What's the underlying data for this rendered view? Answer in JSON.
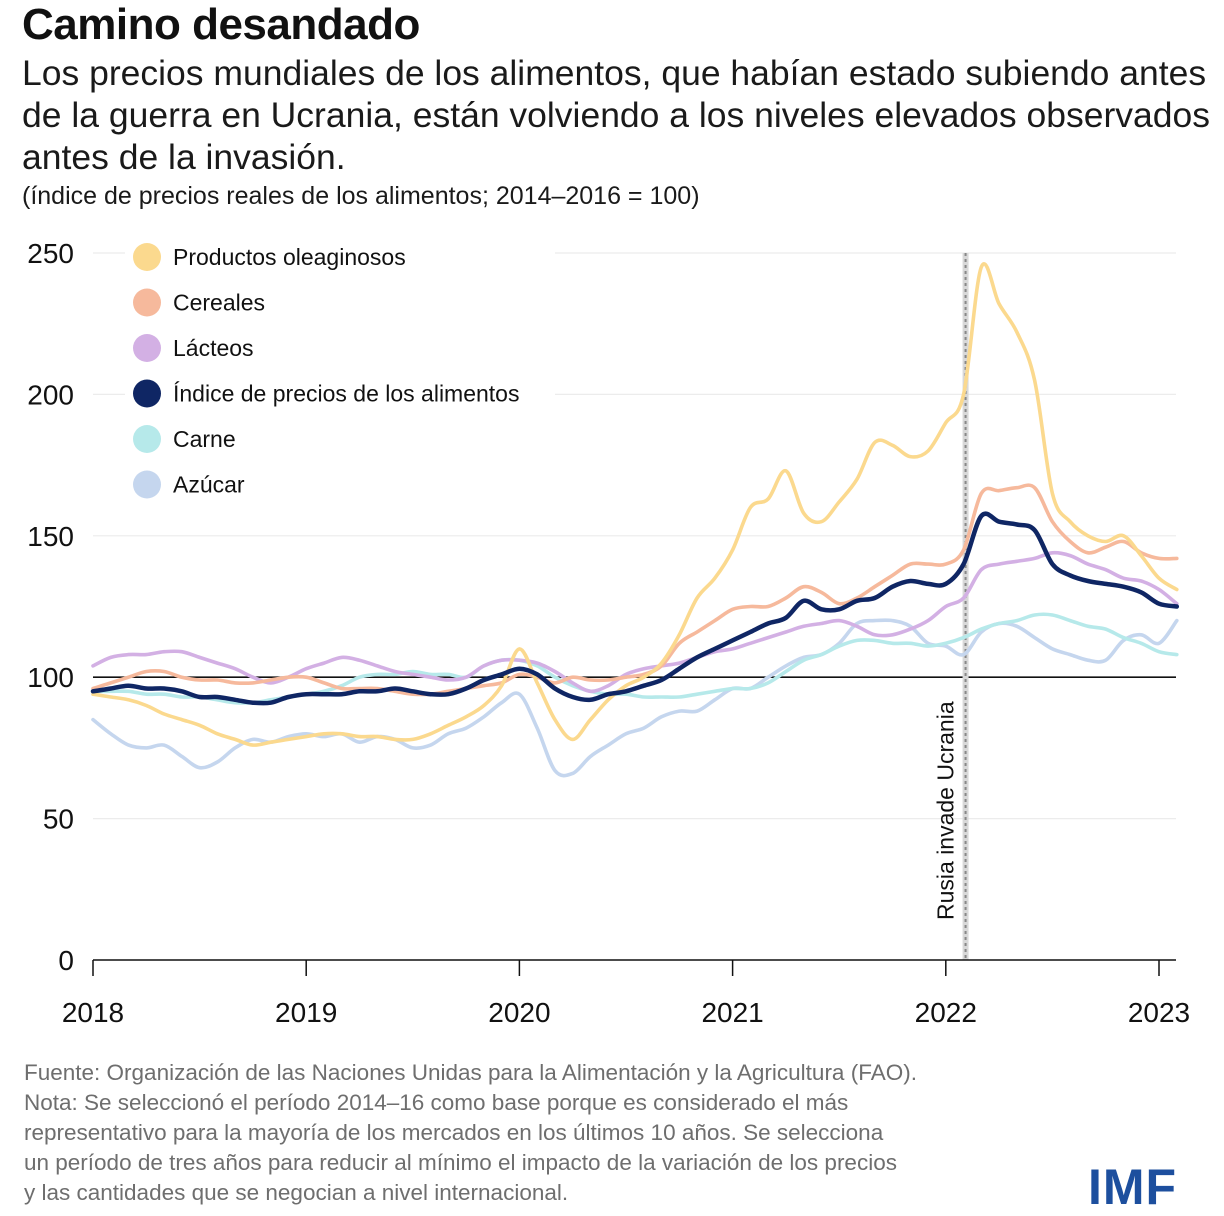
{
  "title": "Camino desandado",
  "subtitle": "Los precios mundiales de los alimentos, que habían estado subiendo antes de la guerra en Ucrania, están volviendo a los niveles elevados observados antes de la invasión.",
  "units": "(índice de precios reales de los alimentos; 2014–2016 = 100)",
  "footer": {
    "lines": [
      "Fuente: Organización de las Naciones Unidas para la Alimentación y la Agricultura (FAO).",
      "Nota: Se seleccionó el período 2014–16 como base porque es considerado el más",
      "representativo para la mayoría de los mercados en los últimos 10 años. Se selecciona",
      "un período de tres años para reducir al mínimo el impacto de la variación de los precios",
      "y las cantidades que se negocian a nivel internacional."
    ]
  },
  "logo": "IMF",
  "chart_data": {
    "type": "line",
    "title": "",
    "xlabel": "",
    "ylabel": "",
    "ylim": [
      0,
      250
    ],
    "xlim": [
      "2018-01",
      "2023-02"
    ],
    "yticks": [
      0,
      50,
      100,
      150,
      200,
      250
    ],
    "xticks": [
      "2018",
      "2019",
      "2020",
      "2021",
      "2022",
      "2023"
    ],
    "grid": true,
    "legend_position": "top-left",
    "reference_line": {
      "y": 100
    },
    "annotation": {
      "x": "2022-02",
      "text": "Rusia invade Ucrania"
    },
    "x": [
      "2018-01",
      "2018-02",
      "2018-03",
      "2018-04",
      "2018-05",
      "2018-06",
      "2018-07",
      "2018-08",
      "2018-09",
      "2018-10",
      "2018-11",
      "2018-12",
      "2019-01",
      "2019-02",
      "2019-03",
      "2019-04",
      "2019-05",
      "2019-06",
      "2019-07",
      "2019-08",
      "2019-09",
      "2019-10",
      "2019-11",
      "2019-12",
      "2020-01",
      "2020-02",
      "2020-03",
      "2020-04",
      "2020-05",
      "2020-06",
      "2020-07",
      "2020-08",
      "2020-09",
      "2020-10",
      "2020-11",
      "2020-12",
      "2021-01",
      "2021-02",
      "2021-03",
      "2021-04",
      "2021-05",
      "2021-06",
      "2021-07",
      "2021-08",
      "2021-09",
      "2021-10",
      "2021-11",
      "2021-12",
      "2022-01",
      "2022-02",
      "2022-03",
      "2022-04",
      "2022-05",
      "2022-06",
      "2022-07",
      "2022-08",
      "2022-09",
      "2022-10",
      "2022-11",
      "2022-12",
      "2023-01",
      "2023-02"
    ],
    "series": [
      {
        "name": "Azúcar",
        "color": "#c5d6ee",
        "values": [
          85,
          80,
          76,
          75,
          76,
          72,
          68,
          70,
          75,
          78,
          77,
          79,
          80,
          79,
          80,
          77,
          79,
          78,
          75,
          76,
          80,
          82,
          86,
          91,
          94,
          82,
          67,
          66,
          72,
          76,
          80,
          82,
          86,
          88,
          88,
          92,
          96,
          96,
          100,
          104,
          107,
          108,
          112,
          119,
          120,
          120,
          118,
          112,
          111,
          108,
          116,
          119,
          118,
          114,
          110,
          108,
          106,
          106,
          113,
          115,
          112,
          120
        ]
      },
      {
        "name": "Carne",
        "color": "#b6e9ea",
        "values": [
          95,
          95,
          95,
          94,
          94,
          93,
          93,
          92,
          91,
          91,
          92,
          93,
          94,
          95,
          97,
          100,
          101,
          101,
          102,
          101,
          101,
          100,
          104,
          106,
          106,
          104,
          100,
          97,
          95,
          94,
          94,
          93,
          93,
          93,
          94,
          95,
          96,
          96,
          98,
          102,
          106,
          108,
          111,
          113,
          113,
          112,
          112,
          111,
          112,
          114,
          117,
          119,
          120,
          122,
          122,
          120,
          118,
          117,
          114,
          112,
          109,
          108
        ]
      },
      {
        "name": "Lácteos",
        "color": "#d3b0e4",
        "values": [
          104,
          107,
          108,
          108,
          109,
          109,
          107,
          105,
          103,
          100,
          98,
          100,
          103,
          105,
          107,
          106,
          104,
          102,
          101,
          100,
          99,
          100,
          104,
          106,
          106,
          105,
          102,
          98,
          95,
          97,
          101,
          103,
          104,
          105,
          107,
          109,
          110,
          112,
          114,
          116,
          118,
          119,
          120,
          118,
          115,
          115,
          117,
          120,
          125,
          128,
          138,
          140,
          141,
          142,
          144,
          143,
          140,
          138,
          135,
          134,
          131,
          126
        ]
      },
      {
        "name": "Cereales",
        "color": "#f6b99c",
        "values": [
          96,
          98,
          100,
          102,
          102,
          100,
          99,
          99,
          98,
          98,
          99,
          100,
          100,
          98,
          96,
          96,
          96,
          95,
          94,
          94,
          95,
          96,
          97,
          98,
          101,
          100,
          98,
          100,
          99,
          99,
          100,
          101,
          104,
          112,
          116,
          120,
          124,
          125,
          125,
          128,
          132,
          130,
          126,
          128,
          132,
          136,
          140,
          140,
          140,
          145,
          165,
          166,
          167,
          167,
          155,
          148,
          144,
          146,
          148,
          144,
          142,
          142
        ]
      },
      {
        "name": "Productos oleaginosos",
        "color": "#fbd98e",
        "values": [
          94,
          93,
          92,
          90,
          87,
          85,
          83,
          80,
          78,
          76,
          77,
          78,
          79,
          80,
          80,
          79,
          79,
          78,
          78,
          80,
          83,
          86,
          90,
          97,
          110,
          98,
          85,
          78,
          85,
          92,
          97,
          100,
          105,
          115,
          128,
          135,
          145,
          160,
          163,
          173,
          158,
          155,
          162,
          170,
          183,
          182,
          178,
          180,
          190,
          200,
          245,
          232,
          222,
          205,
          165,
          155,
          150,
          148,
          150,
          143,
          135,
          131
        ]
      },
      {
        "name": "Índice de precios de los alimentos",
        "color": "#0f2664",
        "values": [
          95,
          96,
          97,
          96,
          96,
          95,
          93,
          93,
          92,
          91,
          91,
          93,
          94,
          94,
          94,
          95,
          95,
          96,
          95,
          94,
          94,
          96,
          99,
          101,
          103,
          101,
          96,
          93,
          92,
          94,
          95,
          97,
          99,
          103,
          107,
          110,
          113,
          116,
          119,
          121,
          127,
          124,
          124,
          127,
          128,
          132,
          134,
          133,
          133,
          140,
          157,
          155,
          154,
          152,
          140,
          136,
          134,
          133,
          132,
          130,
          126,
          125
        ]
      }
    ]
  }
}
